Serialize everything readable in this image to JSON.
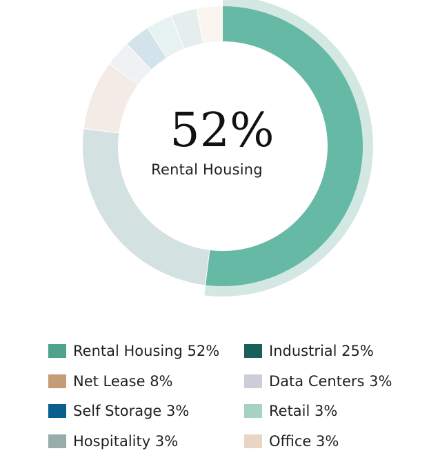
{
  "chart_data": {
    "type": "pie",
    "donut": true,
    "title": "",
    "center": {
      "value": "52%",
      "label": "Rental Housing"
    },
    "highlighted": "Rental Housing",
    "slices": [
      {
        "name": "Rental Housing",
        "value": 52,
        "color": "#65b9a5"
      },
      {
        "name": "Industrial",
        "value": 25,
        "color": "#d3e1e0"
      },
      {
        "name": "Net Lease",
        "value": 8,
        "color": "#f4ebe6"
      },
      {
        "name": "Data Centers",
        "value": 3,
        "color": "#eff1f4"
      },
      {
        "name": "Self Storage",
        "value": 3,
        "color": "#d3e3ec"
      },
      {
        "name": "Retail",
        "value": 3,
        "color": "#e7f3f0"
      },
      {
        "name": "Hospitality",
        "value": 3,
        "color": "#e6eeed"
      },
      {
        "name": "Office",
        "value": 3,
        "color": "#fbf5f1"
      }
    ],
    "legend": {
      "position": "bottom",
      "items": [
        {
          "label": "Rental Housing 52%",
          "color": "#4ea48a"
        },
        {
          "label": "Industrial 25%",
          "color": "#1b5f5a"
        },
        {
          "label": "Net Lease 8%",
          "color": "#c49c76"
        },
        {
          "label": "Data Centers 3%",
          "color": "#cccfd9"
        },
        {
          "label": "Self Storage 3%",
          "color": "#075e8f"
        },
        {
          "label": "Retail 3%",
          "color": "#a6d2c5"
        },
        {
          "label": "Hospitality 3%",
          "color": "#98adaa"
        },
        {
          "label": "Office 3%",
          "color": "#e8d5c3"
        }
      ]
    }
  }
}
